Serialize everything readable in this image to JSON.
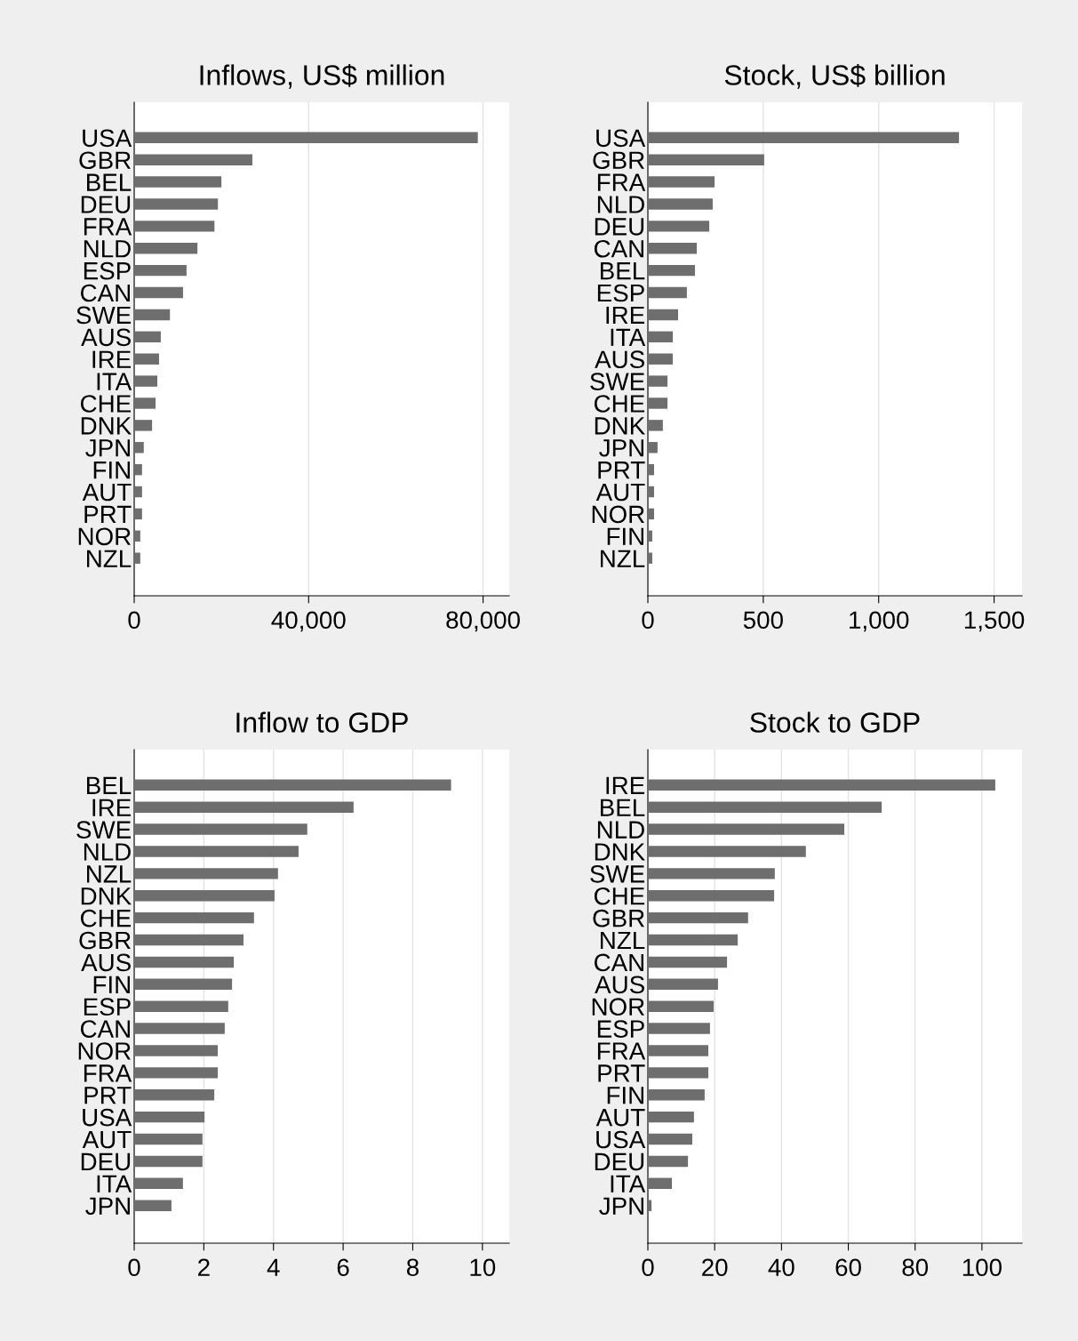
{
  "chart_data": [
    {
      "type": "bar",
      "orientation": "horizontal",
      "title": "Inflows, US$ million",
      "grid": "x",
      "color": "#6e6e6e",
      "categories": [
        "USA",
        "GBR",
        "BEL",
        "DEU",
        "FRA",
        "NLD",
        "ESP",
        "CAN",
        "SWE",
        "AUS",
        "IRE",
        "ITA",
        "CHE",
        "DNK",
        "JPN",
        "FIN",
        "AUT",
        "PRT",
        "NOR",
        "NZL"
      ],
      "values": [
        78800,
        27100,
        20000,
        19200,
        18400,
        14500,
        12000,
        11200,
        8200,
        6100,
        5700,
        5300,
        4900,
        4100,
        2200,
        1800,
        1800,
        1800,
        1400,
        1400
      ],
      "xlim": [
        0,
        86000
      ],
      "xticks": [
        0,
        {
          "value": 40000,
          "label": "40,000"
        },
        {
          "value": 80000,
          "label": "80,000"
        }
      ]
    },
    {
      "type": "bar",
      "orientation": "horizontal",
      "title": "Stock, US$ billion",
      "grid": "x",
      "color": "#6e6e6e",
      "categories": [
        "USA",
        "GBR",
        "FRA",
        "NLD",
        "DEU",
        "CAN",
        "BEL",
        "ESP",
        "IRE",
        "ITA",
        "AUS",
        "SWE",
        "CHE",
        "DNK",
        "JPN",
        "PRT",
        "AUT",
        "NOR",
        "FIN",
        "NZL"
      ],
      "values": [
        1348,
        504,
        289,
        281,
        266,
        212,
        204,
        169,
        131,
        108,
        108,
        85,
        85,
        65,
        42,
        27,
        27,
        27,
        19,
        19
      ],
      "xlim": [
        0,
        1621
      ],
      "xticks": [
        0,
        500,
        {
          "value": 1000,
          "label": "1,000"
        },
        {
          "value": 1500,
          "label": "1,500"
        }
      ]
    },
    {
      "type": "bar",
      "orientation": "horizontal",
      "title": "Inflow to GDP",
      "grid": "x",
      "color": "#6e6e6e",
      "categories": [
        "BEL",
        "IRE",
        "SWE",
        "NLD",
        "NZL",
        "DNK",
        "CHE",
        "GBR",
        "AUS",
        "FIN",
        "ESP",
        "CAN",
        "NOR",
        "FRA",
        "PRT",
        "USA",
        "AUT",
        "DEU",
        "ITA",
        "JPN"
      ],
      "values": [
        9.1,
        6.3,
        4.97,
        4.72,
        4.13,
        4.03,
        3.44,
        3.14,
        2.86,
        2.81,
        2.7,
        2.6,
        2.4,
        2.4,
        2.3,
        2.02,
        1.96,
        1.96,
        1.4,
        1.07
      ],
      "xlim": [
        0,
        10.77
      ],
      "xticks": [
        0,
        2,
        4,
        6,
        8,
        10
      ]
    },
    {
      "type": "bar",
      "orientation": "horizontal",
      "title": "Stock to GDP",
      "grid": "x",
      "color": "#6e6e6e",
      "categories": [
        "IRE",
        "BEL",
        "NLD",
        "DNK",
        "SWE",
        "CHE",
        "GBR",
        "NZL",
        "CAN",
        "AUS",
        "NOR",
        "ESP",
        "FRA",
        "PRT",
        "FIN",
        "AUT",
        "USA",
        "DEU",
        "ITA",
        "JPN"
      ],
      "values": [
        104,
        70,
        58.8,
        47.3,
        38,
        37.8,
        30,
        26.9,
        23.7,
        21,
        19.7,
        18.6,
        18.1,
        18.1,
        17,
        13.8,
        13.3,
        12,
        7.2,
        1.1
      ],
      "xlim": [
        0,
        112
      ],
      "xticks": [
        0,
        20,
        40,
        60,
        80,
        100
      ]
    }
  ]
}
